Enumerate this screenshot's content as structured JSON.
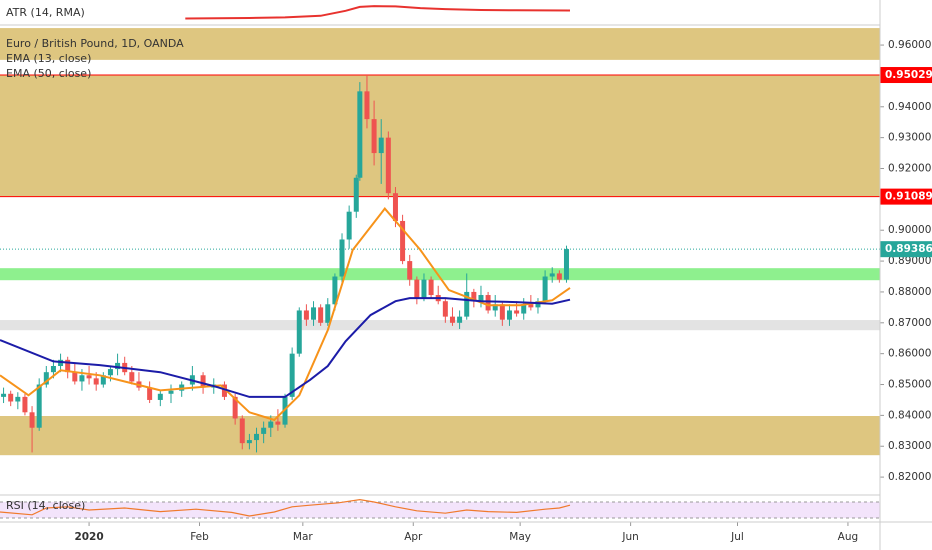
{
  "chart_data": {
    "type": "candlestick",
    "title": "Euro / British Pound, 1D, OANDA",
    "xlim": [
      -25,
      222
    ],
    "xticks": [
      {
        "value": 0,
        "label": "2020"
      },
      {
        "value": 31,
        "label": "Feb"
      },
      {
        "value": 60,
        "label": "Mar"
      },
      {
        "value": 91,
        "label": "Apr"
      },
      {
        "value": 121,
        "label": "May"
      },
      {
        "value": 152,
        "label": "Jun"
      },
      {
        "value": 182,
        "label": "Jul"
      },
      {
        "value": 213,
        "label": "Aug"
      }
    ],
    "ylim": [
      0.8142,
      0.9665
    ],
    "yticks": [
      {
        "value": 0.96,
        "label": "0.96000"
      },
      {
        "value": 0.95,
        "label": "0.95000"
      },
      {
        "value": 0.94,
        "label": "0.94000"
      },
      {
        "value": 0.93,
        "label": "0.93000"
      },
      {
        "value": 0.92,
        "label": "0.92000"
      },
      {
        "value": 0.91,
        "label": "0.91000"
      },
      {
        "value": 0.9,
        "label": "0.90000"
      },
      {
        "value": 0.89,
        "label": "0.89000"
      },
      {
        "value": 0.88,
        "label": "0.88000"
      },
      {
        "value": 0.87,
        "label": "0.87000"
      },
      {
        "value": 0.86,
        "label": "0.86000"
      },
      {
        "value": 0.85,
        "label": "0.85000"
      },
      {
        "value": 0.84,
        "label": "0.84000"
      },
      {
        "value": 0.83,
        "label": "0.83000"
      },
      {
        "value": 0.82,
        "label": "0.82000"
      }
    ],
    "candles": {
      "up_color": "#26a69a",
      "down_color": "#ef5350",
      "x": [
        -24,
        -22,
        -20,
        -18,
        -16,
        -14,
        -12,
        -10,
        -8,
        -6,
        -4,
        -2,
        0,
        2,
        4,
        6,
        8,
        10,
        12,
        14,
        17,
        20,
        23,
        26,
        29,
        32,
        35,
        38,
        41,
        43,
        45,
        47,
        49,
        51,
        53,
        55,
        57,
        59,
        61,
        63,
        65,
        67,
        69,
        71,
        73,
        75,
        76,
        78,
        80,
        82,
        84,
        86,
        88,
        90,
        92,
        94,
        96,
        98,
        100,
        102,
        104,
        106,
        108,
        110,
        112,
        114,
        116,
        118,
        120,
        122,
        124,
        126,
        128,
        130,
        132,
        134
      ],
      "open": [
        0.846,
        0.847,
        0.8445,
        0.846,
        0.841,
        0.836,
        0.85,
        0.854,
        0.856,
        0.858,
        0.854,
        0.851,
        0.853,
        0.852,
        0.85,
        0.853,
        0.855,
        0.857,
        0.854,
        0.851,
        0.849,
        0.845,
        0.847,
        0.848,
        0.85,
        0.853,
        0.849,
        0.85,
        0.846,
        0.839,
        0.831,
        0.832,
        0.834,
        0.836,
        0.838,
        0.837,
        0.846,
        0.86,
        0.874,
        0.871,
        0.875,
        0.87,
        0.876,
        0.885,
        0.897,
        0.906,
        0.917,
        0.945,
        0.936,
        0.925,
        0.93,
        0.912,
        0.903,
        0.89,
        0.884,
        0.878,
        0.884,
        0.879,
        0.877,
        0.872,
        0.87,
        0.872,
        0.88,
        0.877,
        0.879,
        0.874,
        0.876,
        0.871,
        0.874,
        0.873,
        0.876,
        0.875,
        0.877,
        0.885,
        0.886,
        0.884
      ],
      "high": [
        0.849,
        0.848,
        0.8475,
        0.847,
        0.843,
        0.852,
        0.856,
        0.858,
        0.86,
        0.859,
        0.857,
        0.855,
        0.856,
        0.854,
        0.854,
        0.856,
        0.86,
        0.859,
        0.856,
        0.854,
        0.851,
        0.848,
        0.85,
        0.851,
        0.856,
        0.854,
        0.852,
        0.851,
        0.847,
        0.84,
        0.834,
        0.836,
        0.838,
        0.84,
        0.842,
        0.847,
        0.862,
        0.875,
        0.876,
        0.877,
        0.876,
        0.878,
        0.886,
        0.899,
        0.908,
        0.918,
        0.948,
        0.95,
        0.942,
        0.936,
        0.932,
        0.914,
        0.905,
        0.892,
        0.885,
        0.886,
        0.885,
        0.882,
        0.878,
        0.875,
        0.874,
        0.886,
        0.881,
        0.882,
        0.88,
        0.879,
        0.877,
        0.876,
        0.877,
        0.878,
        0.879,
        0.878,
        0.887,
        0.888,
        0.887,
        0.895
      ],
      "low": [
        0.844,
        0.843,
        0.842,
        0.84,
        0.828,
        0.835,
        0.849,
        0.852,
        0.854,
        0.852,
        0.85,
        0.848,
        0.85,
        0.848,
        0.849,
        0.851,
        0.853,
        0.853,
        0.85,
        0.848,
        0.844,
        0.843,
        0.844,
        0.846,
        0.848,
        0.847,
        0.847,
        0.845,
        0.837,
        0.829,
        0.829,
        0.828,
        0.831,
        0.833,
        0.835,
        0.836,
        0.845,
        0.859,
        0.869,
        0.869,
        0.869,
        0.869,
        0.874,
        0.883,
        0.894,
        0.904,
        0.916,
        0.933,
        0.921,
        0.915,
        0.91,
        0.901,
        0.889,
        0.882,
        0.876,
        0.877,
        0.878,
        0.876,
        0.87,
        0.869,
        0.868,
        0.871,
        0.875,
        0.875,
        0.873,
        0.872,
        0.869,
        0.869,
        0.872,
        0.871,
        0.874,
        0.873,
        0.876,
        0.883,
        0.883,
        0.883
      ],
      "close": [
        0.847,
        0.8445,
        0.846,
        0.841,
        0.836,
        0.85,
        0.854,
        0.856,
        0.858,
        0.854,
        0.851,
        0.853,
        0.852,
        0.85,
        0.853,
        0.855,
        0.857,
        0.854,
        0.851,
        0.849,
        0.845,
        0.847,
        0.848,
        0.85,
        0.853,
        0.849,
        0.85,
        0.846,
        0.839,
        0.831,
        0.832,
        0.834,
        0.836,
        0.838,
        0.837,
        0.846,
        0.86,
        0.874,
        0.871,
        0.875,
        0.87,
        0.876,
        0.885,
        0.897,
        0.906,
        0.917,
        0.945,
        0.936,
        0.925,
        0.93,
        0.912,
        0.903,
        0.89,
        0.884,
        0.878,
        0.884,
        0.879,
        0.877,
        0.872,
        0.87,
        0.872,
        0.88,
        0.877,
        0.879,
        0.874,
        0.876,
        0.871,
        0.874,
        0.873,
        0.876,
        0.875,
        0.877,
        0.885,
        0.886,
        0.884,
        0.8939
      ]
    },
    "series": [
      {
        "name": "EMA (13, close)",
        "color": "#f7931a",
        "x": [
          -25,
          -17,
          -8,
          3,
          20,
          37,
          45,
          52,
          59,
          67,
          74,
          83,
          93,
          101,
          112,
          121,
          130,
          135
        ],
        "values": [
          0.853,
          0.8465,
          0.8546,
          0.853,
          0.8481,
          0.8497,
          0.841,
          0.8385,
          0.8465,
          0.8676,
          0.8936,
          0.907,
          0.8936,
          0.8806,
          0.8757,
          0.8757,
          0.8773,
          0.8813
        ]
      },
      {
        "name": "EMA (50, close)",
        "color": "#1c1ca8",
        "x": [
          -25,
          -10,
          3,
          20,
          35,
          45,
          55,
          62,
          67,
          72,
          79,
          86,
          90,
          100,
          110,
          120,
          130,
          135
        ],
        "values": [
          0.8644,
          0.8575,
          0.8563,
          0.854,
          0.8495,
          0.846,
          0.846,
          0.8515,
          0.856,
          0.864,
          0.8725,
          0.877,
          0.878,
          0.878,
          0.877,
          0.8767,
          0.8762,
          0.8775
        ]
      }
    ],
    "zones": [
      {
        "from": 0.9552,
        "to": 0.9655,
        "color": "#dec680"
      },
      {
        "from": 0.9108,
        "to": 0.9503,
        "color": "#dec680"
      },
      {
        "from": 0.8838,
        "to": 0.8877,
        "color": "#8ef08e"
      },
      {
        "from": 0.8676,
        "to": 0.8709,
        "color": "#e3e3e3"
      },
      {
        "from": 0.8271,
        "to": 0.8398,
        "color": "#dec680"
      }
    ],
    "levels": [
      {
        "value": 0.95029,
        "color": "#ff0000",
        "style": "solid"
      },
      {
        "value": 0.91089,
        "color": "#ff0000",
        "style": "solid"
      },
      {
        "value": 0.89386,
        "color": "#26a69a",
        "style": "dotted"
      }
    ],
    "panels": [
      {
        "name": "ATR (14, RMA)",
        "color": "#e8322e",
        "ylim": [
          0.002,
          0.01
        ],
        "x": [
          27,
          45,
          55,
          65,
          72,
          76,
          80,
          86,
          93,
          100,
          110,
          120,
          135
        ],
        "values": [
          0.004,
          0.0042,
          0.0044,
          0.005,
          0.0068,
          0.0082,
          0.0085,
          0.0084,
          0.0078,
          0.0074,
          0.0071,
          0.007,
          0.0069
        ]
      },
      {
        "name": "RSI (14, close)",
        "color": "#f07a2c",
        "ylim": [
          20,
          80
        ],
        "band": [
          30,
          70
        ],
        "band_color": "#f3e4fb",
        "x": [
          -25,
          -16,
          -12,
          -6,
          0,
          10,
          20,
          30,
          40,
          45,
          52,
          57,
          62,
          70,
          76,
          80,
          86,
          92,
          100,
          106,
          112,
          120,
          128,
          132,
          135
        ],
        "values": [
          45,
          38,
          55,
          58,
          50,
          55,
          46,
          52,
          44,
          35,
          45,
          58,
          62,
          68,
          76,
          70,
          58,
          48,
          42,
          50,
          46,
          44,
          52,
          55,
          62
        ]
      }
    ]
  }
}
